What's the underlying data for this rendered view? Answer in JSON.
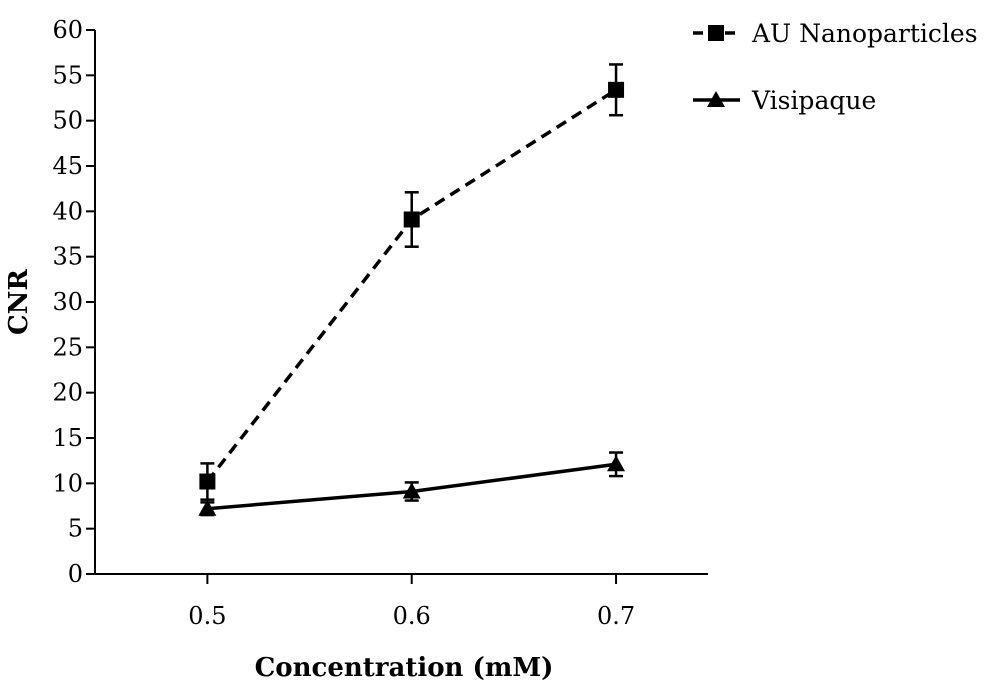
{
  "chart_data": {
    "type": "line",
    "title": "",
    "xlabel": "Concentration (mM)",
    "ylabel": "CNR",
    "x": [
      0.5,
      0.6,
      0.7
    ],
    "x_tick_labels": [
      "0.5",
      "0.6",
      "0.7"
    ],
    "xlim": [
      0.445,
      0.745
    ],
    "ylim": [
      0,
      60
    ],
    "y_ticks": [
      0,
      5,
      10,
      15,
      20,
      25,
      30,
      35,
      40,
      45,
      50,
      55,
      60
    ],
    "grid": false,
    "legend_position": "top-right",
    "series": [
      {
        "name": "AU Nanoparticles",
        "values": [
          10.2,
          39.1,
          53.4
        ],
        "error": [
          2.0,
          3.0,
          2.8
        ],
        "marker": "square",
        "line_style": "dashed",
        "color": "#000000"
      },
      {
        "name": "Visipaque",
        "values": [
          7.2,
          9.1,
          12.1
        ],
        "error": [
          0.7,
          1.0,
          1.3
        ],
        "marker": "triangle",
        "line_style": "solid",
        "color": "#000000"
      }
    ]
  }
}
